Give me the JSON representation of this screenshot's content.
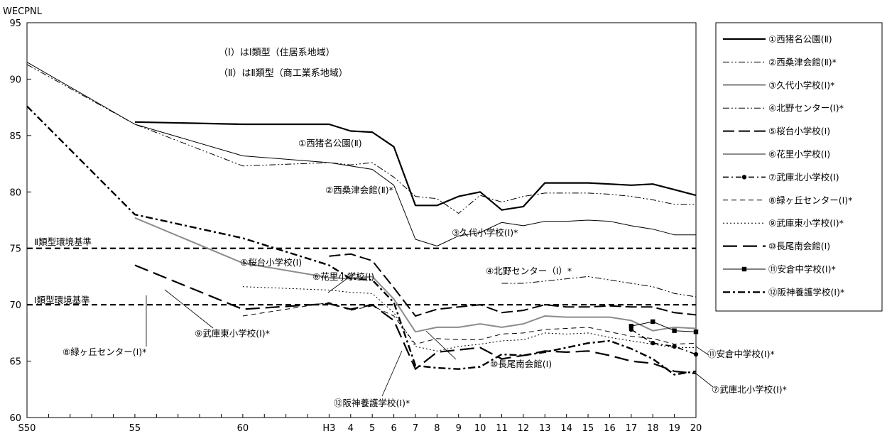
{
  "chart_data": {
    "type": "line",
    "ylabel": "WECPNL",
    "ylim": [
      60,
      95
    ],
    "yticks": [
      "60",
      "65",
      "70",
      "75",
      "80",
      "85",
      "90",
      "95"
    ],
    "categories": [
      "S50",
      "",
      "",
      "",
      "",
      "55",
      "",
      "",
      "",
      "",
      "60",
      "",
      "",
      "",
      "H3",
      "4",
      "5",
      "6",
      "7",
      "8",
      "9",
      "10",
      "11",
      "12",
      "13",
      "14",
      "15",
      "16",
      "17",
      "18",
      "19",
      "20"
    ],
    "notes": [
      "（Ⅰ）はⅠ類型（住居系地域）",
      "（Ⅱ）はⅡ類型（商工業系地域）"
    ],
    "reference_lines": [
      {
        "label": "Ⅱ類型環境基準",
        "value": 75
      },
      {
        "label": "Ⅰ類型環境基準",
        "value": 70
      }
    ],
    "series": [
      {
        "name": "①西猪名公園(Ⅱ)",
        "annotation": "①西猪名公園(Ⅱ)",
        "style": "solid-thick",
        "color": "#000000",
        "values": [
          null,
          null,
          null,
          null,
          null,
          86.2,
          null,
          null,
          null,
          null,
          86.0,
          null,
          null,
          null,
          86.0,
          85.4,
          85.3,
          84.0,
          78.8,
          78.8,
          79.6,
          80.0,
          78.4,
          78.7,
          80.8,
          80.8,
          80.8,
          80.7,
          80.6,
          80.7,
          80.2,
          79.7
        ]
      },
      {
        "name": "②西桑津会館(Ⅱ)*",
        "annotation": "②西桑津会館(Ⅱ)*",
        "style": "dashdotdot",
        "color": "#000000",
        "values": [
          91.3,
          null,
          null,
          null,
          null,
          86.0,
          null,
          null,
          null,
          null,
          82.3,
          null,
          null,
          null,
          82.6,
          82.4,
          82.6,
          81.3,
          79.6,
          79.4,
          78.1,
          79.7,
          79.1,
          79.6,
          79.9,
          79.9,
          79.9,
          79.8,
          79.6,
          79.3,
          78.9,
          78.9
        ]
      },
      {
        "name": "③久代小学校(Ⅰ)*",
        "annotation": "③久代小学校(Ⅰ)*",
        "style": "solid-thin",
        "color": "#000000",
        "values": [
          91.5,
          null,
          null,
          null,
          null,
          86.0,
          null,
          null,
          null,
          null,
          83.2,
          null,
          null,
          null,
          82.6,
          82.3,
          82.0,
          80.6,
          75.8,
          75.2,
          76.1,
          76.4,
          77.3,
          77.0,
          77.4,
          77.4,
          77.5,
          77.4,
          77.0,
          76.7,
          76.2,
          76.2
        ]
      },
      {
        "name": "④北野センター(Ⅰ)*",
        "annotation": "④北野センター（Ⅰ）*",
        "style": "dashdotdot",
        "color": "#000000",
        "values": [
          null,
          null,
          null,
          null,
          null,
          null,
          null,
          null,
          null,
          null,
          null,
          null,
          null,
          null,
          null,
          null,
          null,
          null,
          null,
          null,
          null,
          null,
          71.9,
          71.9,
          72.1,
          72.3,
          72.5,
          72.2,
          71.9,
          71.6,
          71.0,
          70.7
        ]
      },
      {
        "name": "⑤桜台小学校(Ⅰ)",
        "annotation": "⑤桜台小学校(Ⅰ)",
        "style": "longdash",
        "color": "#000000",
        "values": [
          null,
          null,
          null,
          null,
          null,
          null,
          null,
          null,
          null,
          null,
          null,
          null,
          null,
          null,
          74.3,
          74.5,
          73.9,
          71.5,
          69.0,
          69.6,
          69.8,
          70.0,
          69.3,
          69.5,
          70.0,
          69.8,
          69.8,
          69.9,
          69.8,
          69.8,
          69.3,
          69.1
        ]
      },
      {
        "name": "⑥花里小学校(Ⅰ)",
        "annotation": "⑥花里小学校(Ⅰ)",
        "style": "solid-gray",
        "color": "#8c8c8c",
        "values": [
          null,
          null,
          null,
          null,
          null,
          77.7,
          null,
          null,
          null,
          null,
          73.7,
          null,
          null,
          null,
          72.4,
          72.3,
          72.5,
          70.5,
          67.6,
          68.0,
          68.0,
          68.3,
          68.0,
          68.3,
          69.0,
          68.9,
          68.9,
          68.9,
          68.6,
          67.7,
          68.0,
          67.9
        ]
      },
      {
        "name": "⑦武庫北小学校(Ⅰ)",
        "annotation": "⑦武庫北小学校(Ⅰ)*",
        "style": "dash-dot-marker",
        "color": "#000000",
        "values": [
          null,
          null,
          null,
          null,
          null,
          null,
          null,
          null,
          null,
          null,
          null,
          null,
          null,
          null,
          null,
          null,
          null,
          null,
          null,
          null,
          null,
          null,
          null,
          null,
          null,
          null,
          null,
          null,
          67.8,
          66.6,
          66.3,
          65.6
        ]
      },
      {
        "name": "⑧緑ヶ丘センター(Ⅰ)*",
        "annotation": "⑧緑ヶ丘センター(Ⅰ)*",
        "style": "dashed",
        "color": "#000000",
        "values": [
          null,
          null,
          null,
          null,
          null,
          null,
          null,
          null,
          null,
          null,
          69.0,
          null,
          null,
          null,
          70.2,
          69.5,
          69.9,
          69.0,
          66.5,
          67.0,
          66.9,
          66.9,
          67.4,
          67.5,
          67.8,
          67.9,
          68.0,
          67.6,
          67.2,
          67.0,
          66.5,
          66.6
        ]
      },
      {
        "name": "⑨武庫東小学校(Ⅰ)*",
        "annotation": "⑨武庫東小学校(Ⅰ)*",
        "style": "dotted",
        "color": "#000000",
        "values": [
          null,
          null,
          null,
          null,
          null,
          null,
          null,
          null,
          null,
          null,
          71.6,
          null,
          null,
          null,
          71.3,
          71.1,
          71.0,
          69.3,
          66.3,
          65.9,
          66.3,
          66.5,
          66.8,
          66.9,
          67.5,
          67.4,
          67.5,
          67.1,
          66.8,
          66.5,
          66.2,
          66.2
        ]
      },
      {
        "name": "⑩長尾南会館(Ⅰ)",
        "annotation": "⑩長尾南会館(Ⅰ)",
        "style": "longdash-thick",
        "color": "#000000",
        "values": [
          null,
          null,
          null,
          null,
          null,
          73.5,
          null,
          null,
          null,
          null,
          69.6,
          null,
          null,
          null,
          70.1,
          69.6,
          70.0,
          68.6,
          64.3,
          65.8,
          66.0,
          66.2,
          65.2,
          65.5,
          65.9,
          65.8,
          65.9,
          65.5,
          65.0,
          64.8,
          64.1,
          63.9
        ]
      },
      {
        "name": "⑪安倉中学校(Ⅰ)*",
        "annotation": "⑪安倉中学校(Ⅰ)*",
        "style": "solid-marker",
        "color": "#000000",
        "values": [
          null,
          null,
          null,
          null,
          null,
          null,
          null,
          null,
          null,
          null,
          null,
          null,
          null,
          null,
          null,
          null,
          null,
          null,
          null,
          null,
          null,
          null,
          null,
          null,
          null,
          null,
          null,
          null,
          68.1,
          68.5,
          67.7,
          67.6
        ]
      },
      {
        "name": "⑫阪神養護学校(Ⅰ)*",
        "annotation": "⑫阪神養護学校(Ⅰ)*",
        "style": "dashdot-thick",
        "color": "#000000",
        "values": [
          87.6,
          null,
          null,
          null,
          null,
          78.0,
          null,
          null,
          null,
          null,
          75.9,
          null,
          null,
          null,
          73.5,
          72.3,
          72.2,
          70.2,
          64.6,
          64.4,
          64.3,
          64.5,
          65.6,
          65.5,
          65.8,
          66.2,
          66.6,
          66.8,
          66.1,
          65.2,
          63.8,
          64.1
        ]
      }
    ]
  }
}
